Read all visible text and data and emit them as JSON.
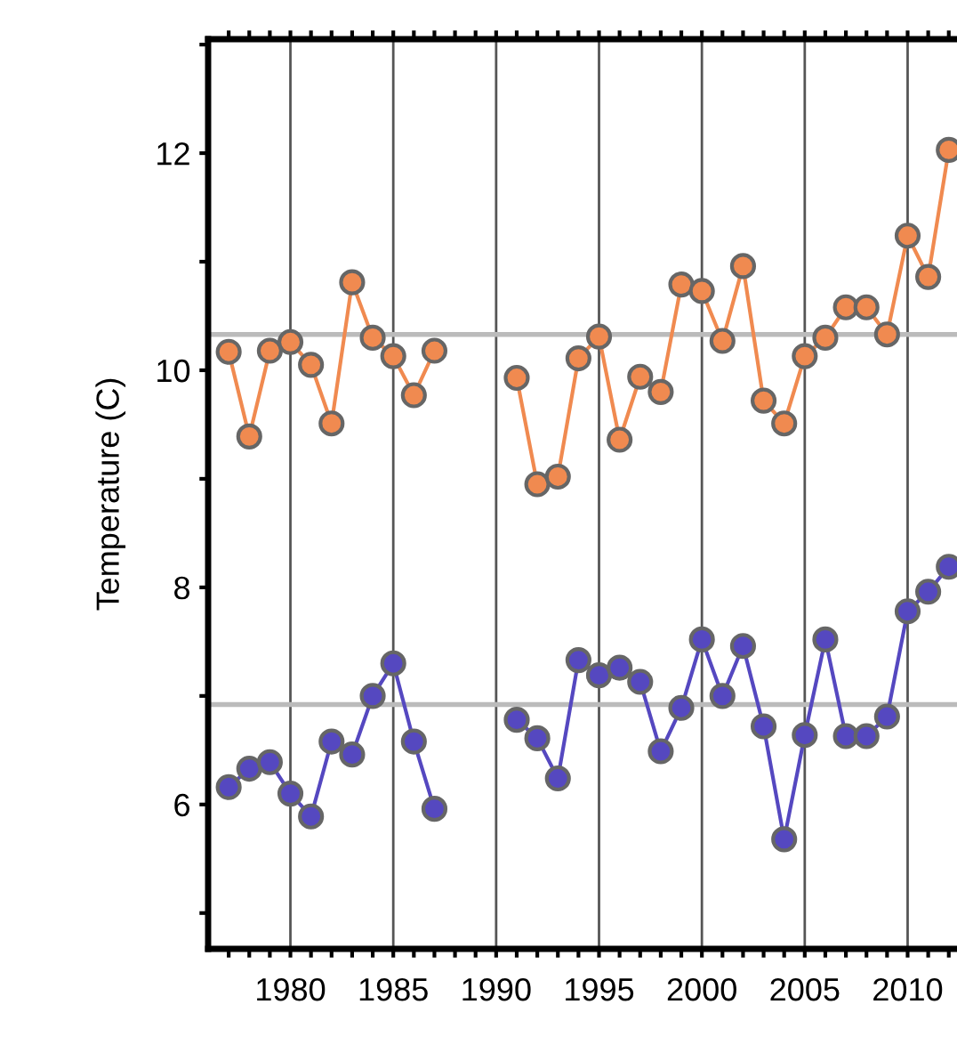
{
  "chart_data": {
    "type": "line",
    "ylabel": "Temperature (C)",
    "x": [
      1977,
      1978,
      1979,
      1980,
      1981,
      1982,
      1983,
      1984,
      1985,
      1986,
      1987,
      1988,
      1989,
      1990,
      1991,
      1992,
      1993,
      1994,
      1995,
      1996,
      1997,
      1998,
      1999,
      2000,
      2001,
      2002,
      2003,
      2004,
      2005,
      2006,
      2007,
      2008,
      2009,
      2010,
      2011,
      2012
    ],
    "series": [
      {
        "color": "#f08a50",
        "values": [
          10.17,
          9.39,
          10.18,
          10.26,
          10.05,
          9.51,
          10.81,
          10.3,
          10.13,
          9.77,
          10.18,
          null,
          null,
          null,
          9.93,
          8.95,
          9.02,
          10.11,
          10.31,
          9.36,
          9.94,
          9.8,
          10.79,
          10.73,
          10.27,
          10.96,
          9.72,
          9.51,
          10.13,
          10.3,
          10.58,
          10.58,
          10.33,
          11.24,
          10.86,
          12.03
        ]
      },
      {
        "color": "#5548c0",
        "values": [
          6.16,
          6.33,
          6.39,
          6.1,
          5.89,
          6.58,
          6.46,
          7.0,
          7.3,
          6.58,
          5.96,
          null,
          null,
          null,
          6.78,
          6.61,
          6.24,
          7.33,
          7.19,
          7.26,
          7.13,
          6.49,
          6.89,
          7.52,
          7.0,
          7.46,
          6.72,
          5.68,
          6.64,
          7.52,
          6.63,
          6.63,
          6.81,
          7.78,
          7.96,
          8.19
        ]
      }
    ],
    "marker": "circle",
    "xlim": [
      1976,
      2012.4
    ],
    "xticks": [
      {
        "value": 1977,
        "label": null
      },
      {
        "value": 1978,
        "label": null
      },
      {
        "value": 1979,
        "label": null
      },
      1980,
      {
        "value": 1981,
        "label": null
      },
      {
        "value": 1982,
        "label": null
      },
      {
        "value": 1983,
        "label": null
      },
      {
        "value": 1984,
        "label": null
      },
      1985,
      {
        "value": 1986,
        "label": null
      },
      {
        "value": 1987,
        "label": null
      },
      {
        "value": 1988,
        "label": null
      },
      {
        "value": 1989,
        "label": null
      },
      1990,
      {
        "value": 1991,
        "label": null
      },
      {
        "value": 1992,
        "label": null
      },
      {
        "value": 1993,
        "label": null
      },
      {
        "value": 1994,
        "label": null
      },
      1995,
      {
        "value": 1996,
        "label": null
      },
      {
        "value": 1997,
        "label": null
      },
      {
        "value": 1998,
        "label": null
      },
      {
        "value": 1999,
        "label": null
      },
      2000,
      {
        "value": 2001,
        "label": null
      },
      {
        "value": 2002,
        "label": null
      },
      {
        "value": 2003,
        "label": null
      },
      {
        "value": 2004,
        "label": null
      },
      2005,
      {
        "value": 2006,
        "label": null
      },
      {
        "value": 2007,
        "label": null
      },
      {
        "value": 2008,
        "label": null
      },
      {
        "value": 2009,
        "label": null
      },
      2010,
      {
        "value": 2011,
        "label": null
      },
      {
        "value": 2012,
        "label": null
      }
    ],
    "ylim": [
      4.67,
      13.05
    ],
    "yticks": [
      {
        "value": 5,
        "label": null
      },
      6,
      {
        "value": 7,
        "label": null
      },
      8,
      {
        "value": 9,
        "label": null
      },
      10,
      {
        "value": 11,
        "label": null
      },
      12,
      {
        "value": 13,
        "label": null
      }
    ],
    "grid": "x",
    "ref_lines": [
      {
        "axis": "y",
        "value": 10.33,
        "color": "#bbbbbb"
      },
      {
        "axis": "y",
        "value": 6.92,
        "color": "#bbbbbb"
      }
    ]
  }
}
